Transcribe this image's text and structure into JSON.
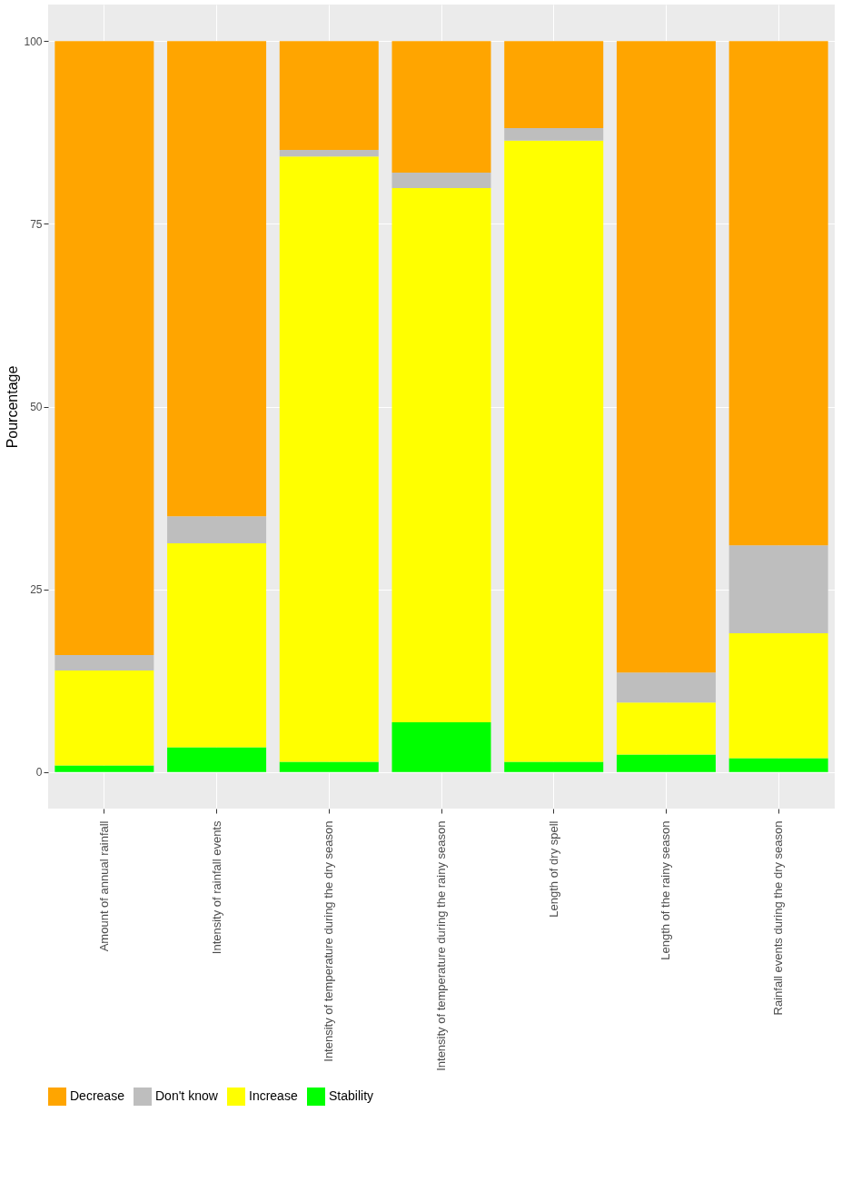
{
  "chart_data": {
    "type": "bar",
    "stacked": true,
    "ylabel": "Pourcentage",
    "categories": [
      "Amount of annual rainfall",
      "Intensity of rainfall events",
      "Intensity of temperature during the dry season",
      "Intensity of temperature during the rainy season",
      "Length of dry spell",
      "Length of the rainy season",
      "Rainfall events during the dry season"
    ],
    "series": [
      {
        "name": "Stability",
        "color": "#00ff00",
        "values": [
          0.9,
          3.4,
          1.4,
          6.8,
          1.4,
          2.4,
          1.9
        ]
      },
      {
        "name": "Increase",
        "color": "#ffff00",
        "values": [
          13.0,
          27.9,
          82.8,
          73.1,
          85.0,
          7.1,
          17.1
        ]
      },
      {
        "name": "Don't know",
        "color": "#bebebe",
        "values": [
          2.1,
          3.7,
          0.9,
          2.1,
          1.7,
          4.1,
          12.0
        ]
      },
      {
        "name": "Decrease",
        "color": "#ffa500",
        "values": [
          84.0,
          65.0,
          14.9,
          18.0,
          11.9,
          86.4,
          69.0
        ]
      }
    ],
    "ylim": [
      -5,
      105
    ],
    "yticks": [
      0,
      25,
      50,
      75,
      100
    ],
    "grid": true,
    "legend": "bottom"
  }
}
